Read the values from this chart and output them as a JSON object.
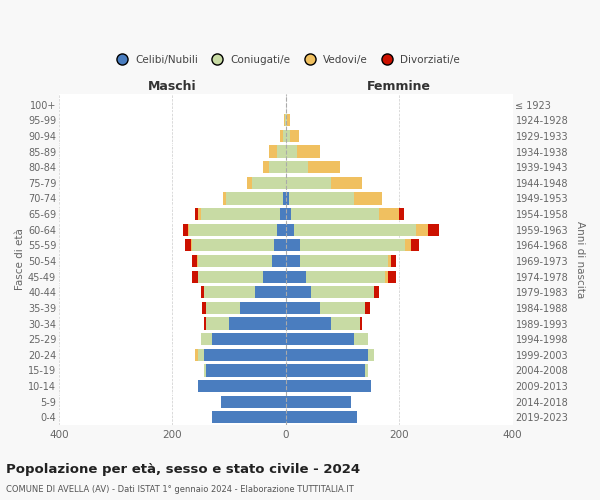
{
  "age_groups": [
    "0-4",
    "5-9",
    "10-14",
    "15-19",
    "20-24",
    "25-29",
    "30-34",
    "35-39",
    "40-44",
    "45-49",
    "50-54",
    "55-59",
    "60-64",
    "65-69",
    "70-74",
    "75-79",
    "80-84",
    "85-89",
    "90-94",
    "95-99",
    "100+"
  ],
  "birth_years": [
    "2019-2023",
    "2014-2018",
    "2009-2013",
    "2004-2008",
    "1999-2003",
    "1994-1998",
    "1989-1993",
    "1984-1988",
    "1979-1983",
    "1974-1978",
    "1969-1973",
    "1964-1968",
    "1959-1963",
    "1954-1958",
    "1949-1953",
    "1944-1948",
    "1939-1943",
    "1934-1938",
    "1929-1933",
    "1924-1928",
    "≤ 1923"
  ],
  "males": {
    "celibi": [
      130,
      115,
      155,
      140,
      145,
      130,
      100,
      80,
      55,
      40,
      25,
      20,
      15,
      10,
      5,
      0,
      0,
      0,
      0,
      0,
      0
    ],
    "coniugati": [
      0,
      0,
      0,
      5,
      10,
      20,
      40,
      60,
      90,
      115,
      130,
      145,
      155,
      140,
      100,
      60,
      30,
      15,
      5,
      2,
      0
    ],
    "vedovi": [
      0,
      0,
      0,
      0,
      5,
      0,
      0,
      0,
      0,
      0,
      1,
      2,
      3,
      5,
      5,
      8,
      10,
      15,
      5,
      2,
      0
    ],
    "divorziati": [
      0,
      0,
      0,
      0,
      0,
      0,
      5,
      8,
      5,
      10,
      10,
      10,
      8,
      5,
      0,
      0,
      0,
      0,
      0,
      0,
      0
    ]
  },
  "females": {
    "nubili": [
      125,
      115,
      150,
      140,
      145,
      120,
      80,
      60,
      45,
      35,
      25,
      25,
      15,
      10,
      5,
      0,
      0,
      0,
      0,
      0,
      0
    ],
    "coniugate": [
      0,
      0,
      0,
      5,
      10,
      25,
      50,
      80,
      110,
      140,
      155,
      185,
      215,
      155,
      115,
      80,
      40,
      20,
      8,
      2,
      0
    ],
    "vedove": [
      0,
      0,
      0,
      0,
      0,
      0,
      0,
      0,
      0,
      5,
      5,
      10,
      20,
      35,
      50,
      55,
      55,
      40,
      15,
      5,
      0
    ],
    "divorziate": [
      0,
      0,
      0,
      0,
      0,
      0,
      5,
      8,
      10,
      15,
      10,
      15,
      20,
      8,
      0,
      0,
      0,
      0,
      0,
      0,
      0
    ]
  },
  "color_celibi": "#4a7dbf",
  "color_coniugati": "#c8dba4",
  "color_vedovi": "#f0c060",
  "color_divorziati": "#cc1100",
  "xlim": 400,
  "title_main": "Popolazione per età, sesso e stato civile - 2024",
  "title_sub": "COMUNE DI AVELLA (AV) - Dati ISTAT 1° gennaio 2024 - Elaborazione TUTTITALIA.IT",
  "ylabel_left": "Fasce di età",
  "ylabel_right": "Anni di nascita",
  "xlabel_left": "Maschi",
  "xlabel_right": "Femmine",
  "bg_color": "#f8f8f8",
  "plot_bg": "#ffffff"
}
